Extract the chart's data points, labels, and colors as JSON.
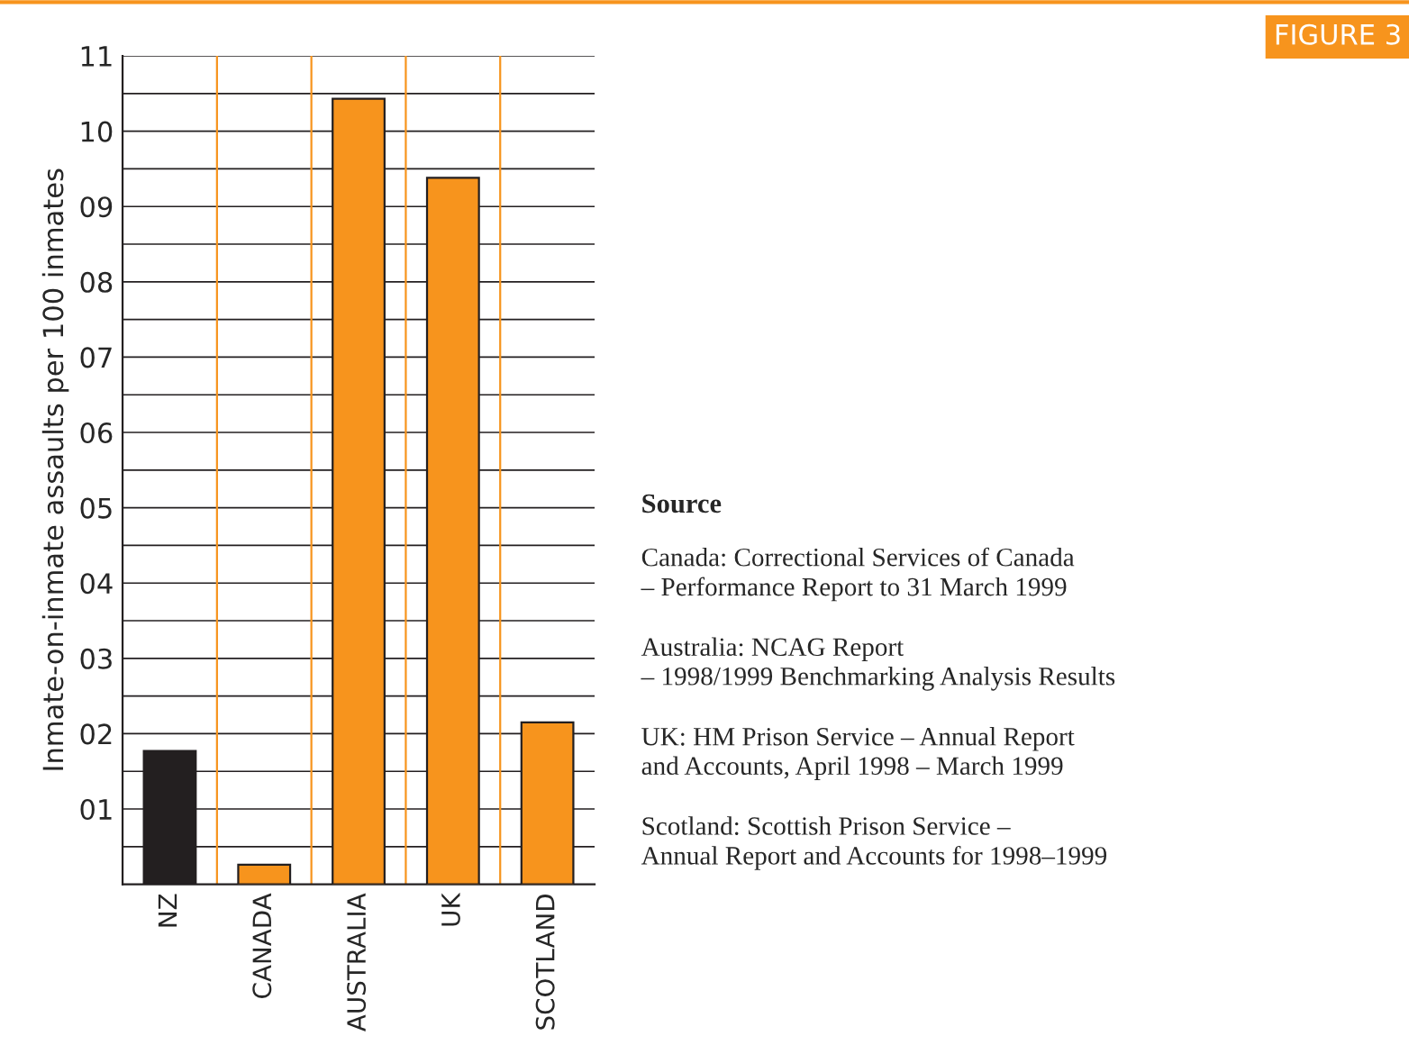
{
  "chart_data": {
    "type": "bar",
    "ylabel": "Inmate-on-inmate assaults per 100 inmates",
    "categories": [
      "NZ",
      "CANADA",
      "AUSTRALIA",
      "UK",
      "SCOTLAND"
    ],
    "values": [
      1.77,
      0.26,
      10.43,
      9.38,
      2.15
    ],
    "colors": [
      "#231f20",
      "#f7941d",
      "#f7941d",
      "#f7941d",
      "#f7941d"
    ],
    "ylim": [
      0,
      11
    ],
    "yticks": [
      {
        "value": 0.5,
        "label": null
      },
      {
        "value": 1,
        "label": "01"
      },
      {
        "value": 1.5,
        "label": null
      },
      {
        "value": 2,
        "label": "02"
      },
      {
        "value": 2.5,
        "label": null
      },
      {
        "value": 3,
        "label": "03"
      },
      {
        "value": 3.5,
        "label": null
      },
      {
        "value": 4,
        "label": "04"
      },
      {
        "value": 4.5,
        "label": null
      },
      {
        "value": 5,
        "label": "05"
      },
      {
        "value": 5.5,
        "label": null
      },
      {
        "value": 6,
        "label": "06"
      },
      {
        "value": 6.5,
        "label": null
      },
      {
        "value": 7,
        "label": "07"
      },
      {
        "value": 7.5,
        "label": null
      },
      {
        "value": 8,
        "label": "08"
      },
      {
        "value": 8.5,
        "label": null
      },
      {
        "value": 9,
        "label": "09"
      },
      {
        "value": 9.5,
        "label": null
      },
      {
        "value": 10,
        "label": "10"
      },
      {
        "value": 10.5,
        "label": null
      },
      {
        "value": 11,
        "label": "11"
      }
    ],
    "grid": "y",
    "annotations": [
      "FIGURE 3",
      "Source",
      "Canada: Correctional Services of Canada\n– Performance Report to 31 March 1999",
      "Australia: NCAG Report\n– 1998/1999 Benchmarking Analysis Results",
      "UK: HM Prison Service – Annual Report\nand Accounts, April 1998 – March 1999",
      "Scotland: Scottish Prison Service –\nAnnual Report and Accounts for 1998–1999"
    ]
  }
}
